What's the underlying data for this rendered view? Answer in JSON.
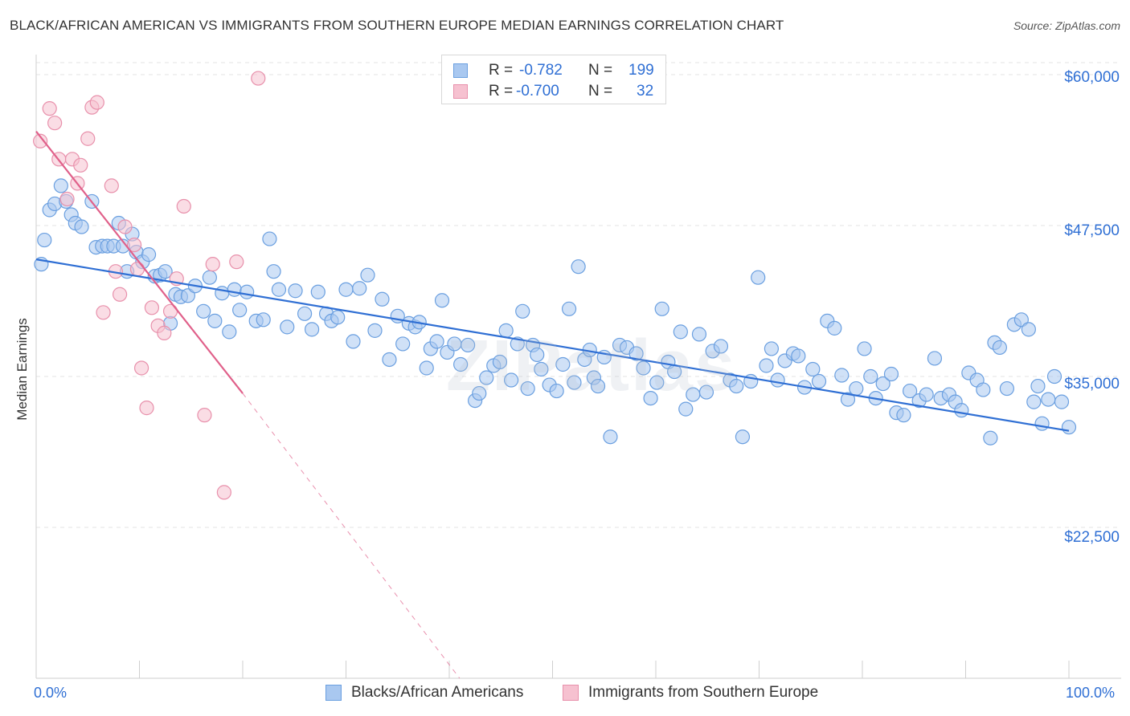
{
  "title": "BLACK/AFRICAN AMERICAN VS IMMIGRANTS FROM SOUTHERN EUROPE MEDIAN EARNINGS CORRELATION CHART",
  "source": "Source: ZipAtlas.com",
  "watermark": "ZIPatlas",
  "legend": {
    "rows": [
      {
        "r_label": "R =",
        "r_value": "-0.782",
        "n_label": "N =",
        "n_value": "199"
      },
      {
        "r_label": "R =",
        "r_value": "-0.700",
        "n_label": "N =",
        "n_value": "32"
      }
    ]
  },
  "bottom_legend": [
    "Blacks/African Americans",
    "Immigrants from Southern Europe"
  ],
  "colors": {
    "blue_fill": "#a9c8f0",
    "blue_stroke": "#6a9fe0",
    "blue_line": "#2f6fd4",
    "pink_fill": "#f6c1d0",
    "pink_stroke": "#e890ab",
    "pink_line": "#e0608a",
    "tick_text": "#2f6fd4",
    "grid": "#e3e3e3"
  },
  "chart_data": {
    "type": "scatter",
    "xlabel": "",
    "ylabel": "Median Earnings",
    "xlim": [
      0,
      100
    ],
    "ylim": [
      10000,
      61000
    ],
    "x_tick_labels": [
      "0.0%",
      "100.0%"
    ],
    "y_ticks": [
      22500,
      35000,
      47500,
      60000
    ],
    "y_tick_labels": [
      "$22,500",
      "$35,000",
      "$47,500",
      "$60,000"
    ],
    "grid": true,
    "series": [
      {
        "name": "Blacks/African Americans",
        "color": "#6a9fe0",
        "trend": {
          "x": [
            0,
            100
          ],
          "y": [
            44700,
            30500
          ]
        },
        "points": [
          [
            0.5,
            44300
          ],
          [
            0.8,
            46300
          ],
          [
            1.3,
            48800
          ],
          [
            1.8,
            49300
          ],
          [
            2.4,
            50800
          ],
          [
            2.9,
            49500
          ],
          [
            3.4,
            48400
          ],
          [
            3.8,
            47700
          ],
          [
            4.4,
            47400
          ],
          [
            5.4,
            49500
          ],
          [
            5.8,
            45700
          ],
          [
            6.4,
            45800
          ],
          [
            6.9,
            45800
          ],
          [
            7.5,
            45800
          ],
          [
            8.0,
            47700
          ],
          [
            8.4,
            45800
          ],
          [
            8.8,
            43700
          ],
          [
            9.3,
            46800
          ],
          [
            9.7,
            45300
          ],
          [
            10.3,
            44500
          ],
          [
            10.9,
            45100
          ],
          [
            11.5,
            43300
          ],
          [
            12.0,
            43400
          ],
          [
            12.5,
            43700
          ],
          [
            13.0,
            39400
          ],
          [
            13.5,
            41800
          ],
          [
            14.0,
            41600
          ],
          [
            14.7,
            41700
          ],
          [
            15.4,
            42500
          ],
          [
            16.2,
            40400
          ],
          [
            16.8,
            43200
          ],
          [
            17.3,
            39600
          ],
          [
            18.0,
            41900
          ],
          [
            18.7,
            38700
          ],
          [
            19.2,
            42200
          ],
          [
            19.7,
            40500
          ],
          [
            20.4,
            42000
          ],
          [
            21.3,
            39600
          ],
          [
            22.0,
            39700
          ],
          [
            22.6,
            46400
          ],
          [
            23.0,
            43700
          ],
          [
            23.5,
            42200
          ],
          [
            24.3,
            39100
          ],
          [
            25.1,
            42100
          ],
          [
            26.0,
            40200
          ],
          [
            26.7,
            38900
          ],
          [
            27.3,
            42000
          ],
          [
            28.1,
            40200
          ],
          [
            28.6,
            39600
          ],
          [
            29.2,
            39900
          ],
          [
            30.0,
            42200
          ],
          [
            30.7,
            37900
          ],
          [
            31.3,
            42300
          ],
          [
            32.1,
            43400
          ],
          [
            32.8,
            38800
          ],
          [
            33.5,
            41400
          ],
          [
            34.2,
            36400
          ],
          [
            35.0,
            40000
          ],
          [
            35.5,
            37700
          ],
          [
            36.1,
            39400
          ],
          [
            36.7,
            39100
          ],
          [
            37.1,
            39500
          ],
          [
            37.8,
            35700
          ],
          [
            38.2,
            37300
          ],
          [
            38.8,
            37900
          ],
          [
            39.3,
            41300
          ],
          [
            39.8,
            37000
          ],
          [
            40.5,
            37700
          ],
          [
            41.1,
            36000
          ],
          [
            41.8,
            37600
          ],
          [
            42.5,
            33000
          ],
          [
            42.9,
            33600
          ],
          [
            43.6,
            34900
          ],
          [
            44.3,
            35900
          ],
          [
            44.9,
            36200
          ],
          [
            45.5,
            38800
          ],
          [
            46.0,
            34700
          ],
          [
            46.6,
            37700
          ],
          [
            47.1,
            40400
          ],
          [
            47.6,
            34000
          ],
          [
            48.1,
            37600
          ],
          [
            48.5,
            36800
          ],
          [
            48.9,
            35600
          ],
          [
            49.7,
            34300
          ],
          [
            50.4,
            33800
          ],
          [
            51.0,
            36000
          ],
          [
            51.6,
            40600
          ],
          [
            52.1,
            34500
          ],
          [
            52.5,
            44100
          ],
          [
            53.1,
            36400
          ],
          [
            53.6,
            37200
          ],
          [
            54.0,
            34900
          ],
          [
            54.4,
            34200
          ],
          [
            55.0,
            36600
          ],
          [
            55.6,
            30000
          ],
          [
            56.5,
            37600
          ],
          [
            57.2,
            37400
          ],
          [
            58.1,
            36900
          ],
          [
            58.8,
            35700
          ],
          [
            59.5,
            33200
          ],
          [
            60.1,
            34500
          ],
          [
            60.6,
            40600
          ],
          [
            61.2,
            36200
          ],
          [
            61.8,
            35400
          ],
          [
            62.4,
            38700
          ],
          [
            62.9,
            32300
          ],
          [
            63.6,
            33500
          ],
          [
            64.2,
            38500
          ],
          [
            64.9,
            33700
          ],
          [
            65.5,
            37100
          ],
          [
            66.3,
            37500
          ],
          [
            67.2,
            34700
          ],
          [
            67.8,
            34200
          ],
          [
            68.4,
            30000
          ],
          [
            69.2,
            34600
          ],
          [
            69.9,
            43200
          ],
          [
            70.7,
            35900
          ],
          [
            71.2,
            37300
          ],
          [
            71.8,
            34700
          ],
          [
            72.5,
            36300
          ],
          [
            73.3,
            36900
          ],
          [
            73.8,
            36700
          ],
          [
            74.4,
            34100
          ],
          [
            75.2,
            35600
          ],
          [
            75.8,
            34600
          ],
          [
            76.6,
            39600
          ],
          [
            77.3,
            39000
          ],
          [
            78.0,
            35100
          ],
          [
            78.6,
            33100
          ],
          [
            79.4,
            34000
          ],
          [
            80.2,
            37300
          ],
          [
            80.8,
            35000
          ],
          [
            81.3,
            33200
          ],
          [
            82.0,
            34400
          ],
          [
            82.8,
            35200
          ],
          [
            83.3,
            32000
          ],
          [
            84.0,
            31800
          ],
          [
            84.6,
            33800
          ],
          [
            85.5,
            33000
          ],
          [
            86.2,
            33500
          ],
          [
            87.0,
            36500
          ],
          [
            87.6,
            33200
          ],
          [
            88.4,
            33500
          ],
          [
            89.0,
            32900
          ],
          [
            89.6,
            32200
          ],
          [
            90.3,
            35300
          ],
          [
            91.1,
            34700
          ],
          [
            91.7,
            33900
          ],
          [
            92.4,
            29900
          ],
          [
            92.8,
            37800
          ],
          [
            93.3,
            37400
          ],
          [
            94.0,
            34000
          ],
          [
            94.7,
            39300
          ],
          [
            95.4,
            39700
          ],
          [
            96.1,
            38900
          ],
          [
            96.6,
            32900
          ],
          [
            97.0,
            34200
          ],
          [
            97.4,
            31100
          ],
          [
            98.0,
            33100
          ],
          [
            98.6,
            35000
          ],
          [
            99.3,
            32900
          ],
          [
            100.0,
            30800
          ]
        ]
      },
      {
        "name": "Immigrants from Southern Europe",
        "color": "#e890ab",
        "trend": {
          "x": [
            0,
            20
          ],
          "y": [
            55300,
            33600
          ]
        },
        "trend_dashed": {
          "x": [
            20,
            41
          ],
          "y": [
            33600,
            10000
          ]
        },
        "points": [
          [
            0.4,
            54500
          ],
          [
            1.3,
            57200
          ],
          [
            1.8,
            56000
          ],
          [
            2.2,
            53000
          ],
          [
            3.0,
            49700
          ],
          [
            3.5,
            53000
          ],
          [
            4.0,
            51000
          ],
          [
            4.3,
            52500
          ],
          [
            5.0,
            54700
          ],
          [
            5.4,
            57300
          ],
          [
            5.9,
            57700
          ],
          [
            6.5,
            40300
          ],
          [
            7.3,
            50800
          ],
          [
            7.7,
            43700
          ],
          [
            8.1,
            41800
          ],
          [
            8.6,
            47400
          ],
          [
            9.5,
            45900
          ],
          [
            9.8,
            43900
          ],
          [
            10.2,
            35700
          ],
          [
            10.7,
            32400
          ],
          [
            11.2,
            40700
          ],
          [
            11.8,
            39200
          ],
          [
            12.4,
            38600
          ],
          [
            13.0,
            40400
          ],
          [
            13.6,
            43100
          ],
          [
            14.3,
            49100
          ],
          [
            16.3,
            31800
          ],
          [
            17.1,
            44300
          ],
          [
            18.2,
            25400
          ],
          [
            19.4,
            44500
          ],
          [
            21.5,
            59700
          ]
        ]
      }
    ]
  }
}
